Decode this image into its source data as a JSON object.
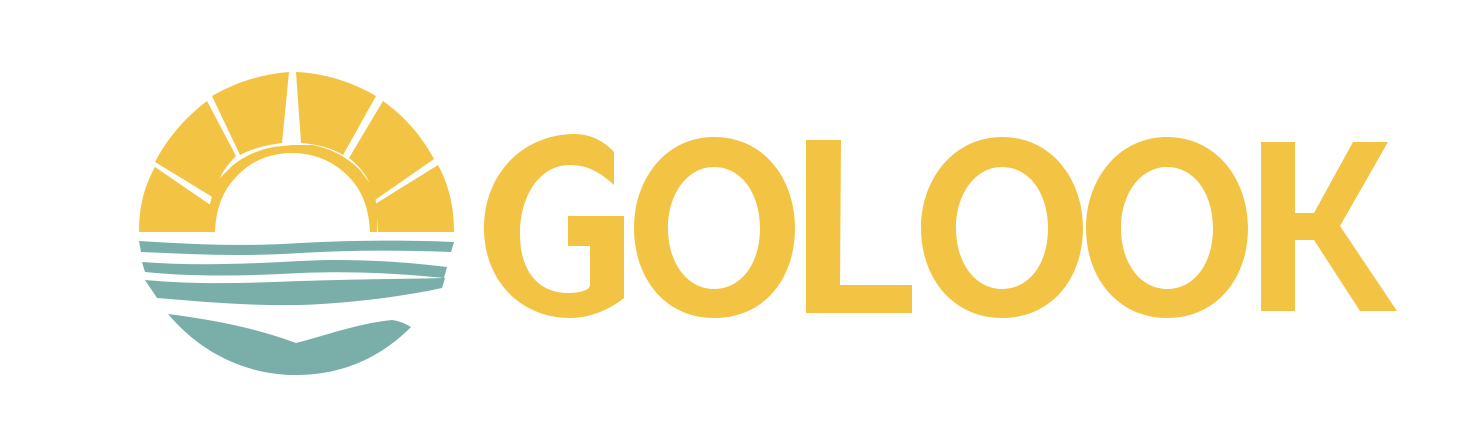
{
  "brand": {
    "wordmark": "GOLOOK",
    "colors": {
      "sun": "#F3C443",
      "sea": "#7AAFA9",
      "background": "#FFFFFF"
    }
  },
  "emblem": {
    "icon": "sunrise-over-sea-icon"
  }
}
